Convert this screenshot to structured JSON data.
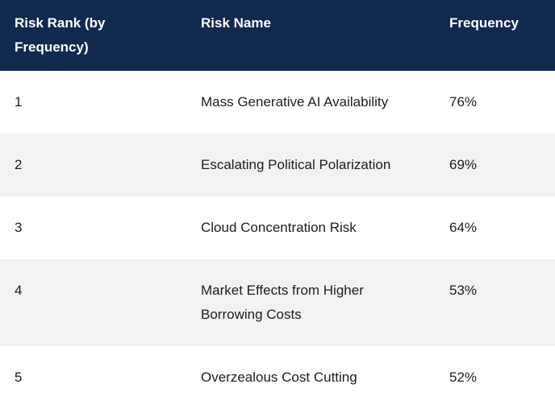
{
  "chart_data": {
    "type": "table",
    "columns": [
      "Risk Rank (by Frequency)",
      "Risk Name",
      "Frequency"
    ],
    "rows": [
      [
        "1",
        "Mass Generative AI Availability",
        "76%"
      ],
      [
        "2",
        "Escalating Political Polarization",
        "69%"
      ],
      [
        "3",
        "Cloud Concentration Risk",
        "64%"
      ],
      [
        "4",
        "Market Effects from Higher Borrowing Costs",
        "53%"
      ],
      [
        "5",
        "Overzealous Cost Cutting",
        "52%"
      ]
    ],
    "frequencies_percent": [
      76,
      69,
      64,
      53,
      52
    ],
    "layout_hints": {
      "header_style": "dark navy band, white bold text",
      "zebra_striping": true,
      "last_row_clipped_at_bottom": true
    }
  },
  "colors": {
    "header_bg": "#12294E",
    "header_text": "#FFFFFF",
    "row_alt_bg": "#F2F2F2",
    "body_text": "#1E1E1E"
  }
}
